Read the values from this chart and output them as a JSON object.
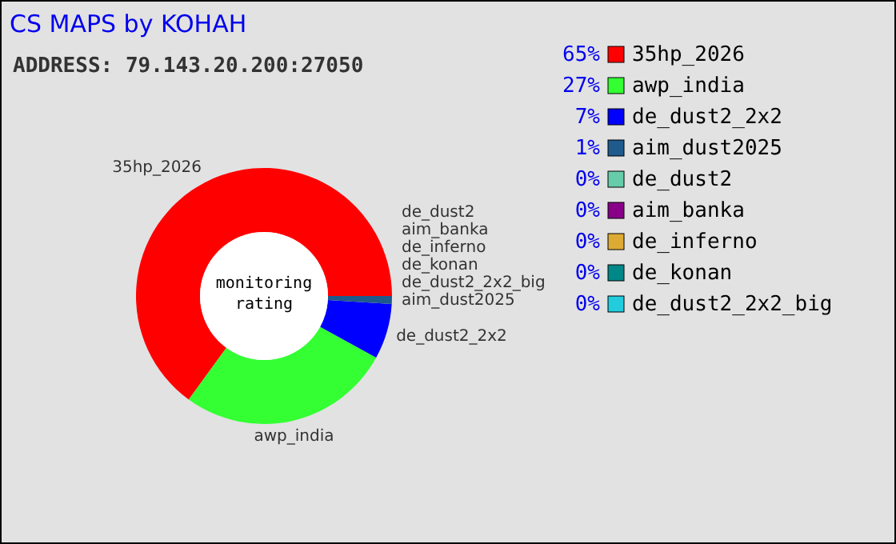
{
  "chart_data": {
    "type": "donut",
    "title": "CS MAPS by KOHAH",
    "subtitle": "ADDRESS: 79.143.20.200:27050",
    "categories": [
      "35hp_2026",
      "awp_india",
      "de_dust2_2x2",
      "aim_dust2025",
      "de_dust2",
      "aim_banka",
      "de_inferno",
      "de_konan",
      "de_dust2_2x2_big"
    ],
    "values": [
      65,
      27,
      7,
      1,
      0,
      0,
      0,
      0,
      0
    ],
    "colors": [
      "#ff0000",
      "#33ff33",
      "#0000ff",
      "#1e5a8c",
      "#66ccaa",
      "#880088",
      "#ddaa33",
      "#008888",
      "#22ccdd"
    ],
    "value_labels": [
      "65%",
      "27%",
      "7%",
      "1%",
      "0%",
      "0%",
      "0%",
      "0%",
      "0%"
    ],
    "data_labels": true,
    "legend": "right",
    "annotations": [
      "monitoring rating"
    ]
  }
}
